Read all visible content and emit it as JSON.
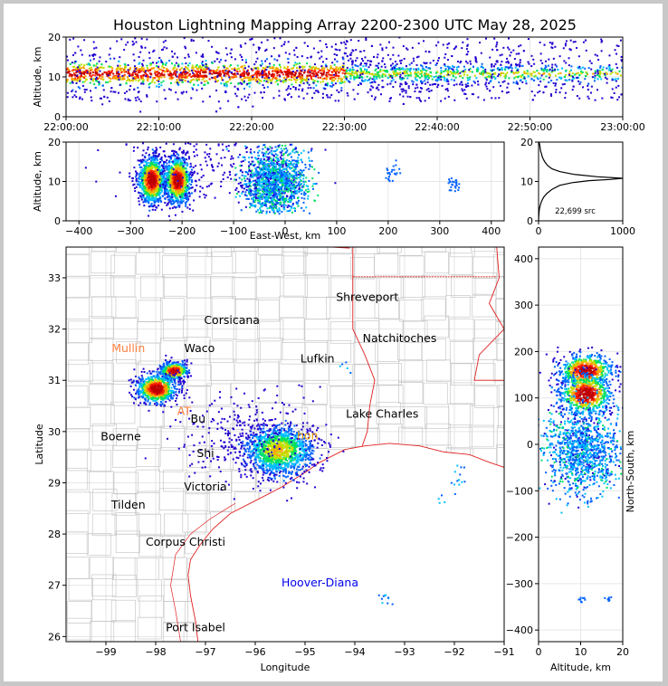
{
  "title": "Houston Lightning Mapping Array 2200-2300 UTC May 28, 2025",
  "colors": {
    "state_border": "#e02020",
    "county_border": "#c8c8c8",
    "coast": "#e02020",
    "density": [
      "#2000d0",
      "#0060ff",
      "#00c0ff",
      "#00e060",
      "#c0e000",
      "#ffa000",
      "#ff2000",
      "#c00000"
    ]
  },
  "chart_data": [
    {
      "id": "time_altitude",
      "type": "scatter",
      "xlabel": "",
      "ylabel": "Altitude, km",
      "xlim": [
        0,
        60
      ],
      "ylim": [
        0,
        20
      ],
      "x_ticks": [
        "22:00:00",
        "22:10:00",
        "22:20:00",
        "22:30:00",
        "22:40:00",
        "22:50:00",
        "23:00:00"
      ],
      "y_ticks": [
        0,
        10,
        20
      ]
    },
    {
      "id": "ew_altitude",
      "type": "scatter",
      "xlabel": "East-West, km",
      "ylabel": "Altitude, km",
      "xlim": [
        -425,
        425
      ],
      "ylim": [
        0,
        20
      ],
      "x_ticks": [
        -400,
        -300,
        -200,
        -100,
        0,
        100,
        200,
        300,
        400
      ],
      "y_ticks": [
        0,
        10,
        20
      ]
    },
    {
      "id": "altitude_histogram",
      "type": "line",
      "xlabel": "",
      "ylabel": "",
      "xlim": [
        0,
        1000
      ],
      "ylim": [
        0,
        20
      ],
      "x_ticks": [
        0,
        1000
      ],
      "y_ticks": [
        0,
        10,
        20
      ],
      "annotation": "22,699 src",
      "series": [
        {
          "x": [
            0,
            2,
            5,
            10,
            20,
            35,
            60,
            100,
            160,
            250,
            400,
            600,
            850,
            1000,
            700,
            420,
            250,
            160,
            110,
            80,
            60,
            45,
            35,
            28,
            22,
            18,
            14,
            10,
            8
          ],
          "y": [
            0,
            1,
            2,
            3,
            4,
            5,
            6,
            7,
            8,
            9,
            9.7,
            10.2,
            10.5,
            10.8,
            11.2,
            11.8,
            12.5,
            13.2,
            14,
            14.8,
            15.5,
            16.2,
            17,
            17.5,
            18,
            18.6,
            19.2,
            19.7,
            20
          ]
        }
      ]
    },
    {
      "id": "plan_view",
      "type": "scatter",
      "xlabel": "Longitude",
      "ylabel": "Latitude",
      "xlim": [
        -99.8,
        -91.0
      ],
      "ylim": [
        25.9,
        33.6
      ],
      "x_ticks": [
        -99,
        -98,
        -97,
        -96,
        -95,
        -94,
        -93,
        -92,
        -91
      ],
      "y_ticks": [
        26,
        27,
        28,
        29,
        30,
        31,
        32,
        33
      ],
      "cities": [
        {
          "name": "Shreveport",
          "lon": -93.75,
          "lat": 32.55,
          "color": "#000000"
        },
        {
          "name": "Corsicana",
          "lon": -96.47,
          "lat": 32.1,
          "color": "#000000"
        },
        {
          "name": "Natchitoches",
          "lon": -93.1,
          "lat": 31.75,
          "color": "#000000"
        },
        {
          "name": "Mullin",
          "lon": -98.55,
          "lat": 31.55,
          "color": "#ff8040"
        },
        {
          "name": "Waco",
          "lon": -97.12,
          "lat": 31.55,
          "color": "#000000"
        },
        {
          "name": "Lufkin",
          "lon": -94.75,
          "lat": 31.35,
          "color": "#000000"
        },
        {
          "name": "Lake Charles",
          "lon": -93.45,
          "lat": 30.27,
          "color": "#000000"
        },
        {
          "name": "AT",
          "lon": -97.43,
          "lat": 30.32,
          "color": "#ff8040"
        },
        {
          "name": "Boerne",
          "lon": -98.7,
          "lat": 29.83,
          "color": "#000000"
        },
        {
          "name": "Victoria",
          "lon": -97.0,
          "lat": 28.85,
          "color": "#000000"
        },
        {
          "name": "Tilden",
          "lon": -98.55,
          "lat": 28.5,
          "color": "#000000"
        },
        {
          "name": "Corpus Christi",
          "lon": -97.4,
          "lat": 27.77,
          "color": "#000000"
        },
        {
          "name": "Hoover-Diana",
          "lon": -94.7,
          "lat": 26.98,
          "color": "#0000ee"
        },
        {
          "name": "Port Isabel",
          "lon": -97.2,
          "lat": 26.1,
          "color": "#000000"
        }
      ],
      "cities_fragmentary": [
        {
          "text": "Bu",
          "lon": -97.15,
          "lat": 30.17
        },
        {
          "text": "Shi",
          "lon": -97.0,
          "lat": 29.5
        },
        {
          "text": "hon",
          "lon": -94.95,
          "lat": 29.85,
          "color": "#e8a000"
        }
      ]
    },
    {
      "id": "altitude_ns",
      "type": "scatter",
      "xlabel": "Altitude, km",
      "ylabel": "North-South, km",
      "xlim": [
        0,
        20
      ],
      "ylim": [
        -425,
        425
      ],
      "x_ticks": [
        0,
        10,
        20
      ],
      "y_ticks": [
        -400,
        -300,
        -200,
        -100,
        0,
        100,
        200,
        300,
        400
      ]
    }
  ]
}
